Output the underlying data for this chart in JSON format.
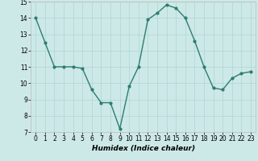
{
  "x": [
    0,
    1,
    2,
    3,
    4,
    5,
    6,
    7,
    8,
    9,
    10,
    11,
    12,
    13,
    14,
    15,
    16,
    17,
    18,
    19,
    20,
    21,
    22,
    23
  ],
  "y": [
    14.0,
    12.5,
    11.0,
    11.0,
    11.0,
    10.9,
    9.6,
    8.8,
    8.8,
    7.2,
    9.8,
    11.0,
    13.9,
    14.3,
    14.8,
    14.6,
    14.0,
    12.6,
    11.0,
    9.7,
    9.6,
    10.3,
    10.6,
    10.7
  ],
  "line_color": "#2e7d6e",
  "marker": "o",
  "marker_size": 2.0,
  "bg_color": "#cce9e7",
  "grid_color": "#b0d4d2",
  "xlabel": "Humidex (Indice chaleur)",
  "xlim": [
    -0.5,
    23.5
  ],
  "ylim": [
    7,
    15
  ],
  "yticks": [
    7,
    8,
    9,
    10,
    11,
    12,
    13,
    14,
    15
  ],
  "xticks": [
    0,
    1,
    2,
    3,
    4,
    5,
    6,
    7,
    8,
    9,
    10,
    11,
    12,
    13,
    14,
    15,
    16,
    17,
    18,
    19,
    20,
    21,
    22,
    23
  ],
  "xlabel_fontsize": 6.5,
  "tick_fontsize": 5.5,
  "linewidth": 1.0
}
